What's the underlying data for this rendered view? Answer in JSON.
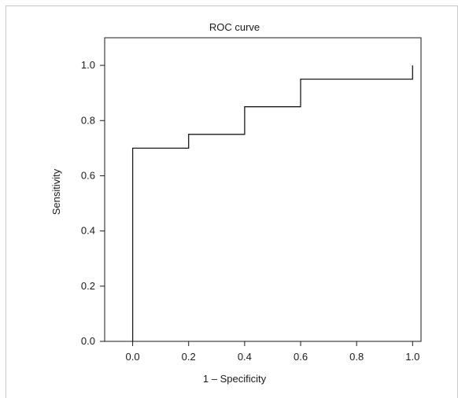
{
  "chart_data": {
    "type": "line",
    "title": "ROC curve",
    "xlabel": "1 – Specificity",
    "ylabel": "Sensitivity",
    "xlim": [
      -0.1,
      1.03
    ],
    "ylim": [
      0.0,
      1.1
    ],
    "x_ticks": [
      "0.0",
      "0.2",
      "0.4",
      "0.6",
      "0.8",
      "1.0"
    ],
    "y_ticks": [
      "0.0",
      "0.2",
      "0.4",
      "0.6",
      "0.8",
      "1.0"
    ],
    "grid": false,
    "series": [
      {
        "style": "step",
        "color": "#1a1a1a",
        "points": [
          {
            "x": 0.0,
            "y": 0.0
          },
          {
            "x": 0.0,
            "y": 0.7
          },
          {
            "x": 0.2,
            "y": 0.7
          },
          {
            "x": 0.2,
            "y": 0.75
          },
          {
            "x": 0.4,
            "y": 0.75
          },
          {
            "x": 0.4,
            "y": 0.85
          },
          {
            "x": 0.6,
            "y": 0.85
          },
          {
            "x": 0.6,
            "y": 0.95
          },
          {
            "x": 1.0,
            "y": 0.95
          },
          {
            "x": 1.0,
            "y": 1.0
          }
        ]
      }
    ]
  }
}
